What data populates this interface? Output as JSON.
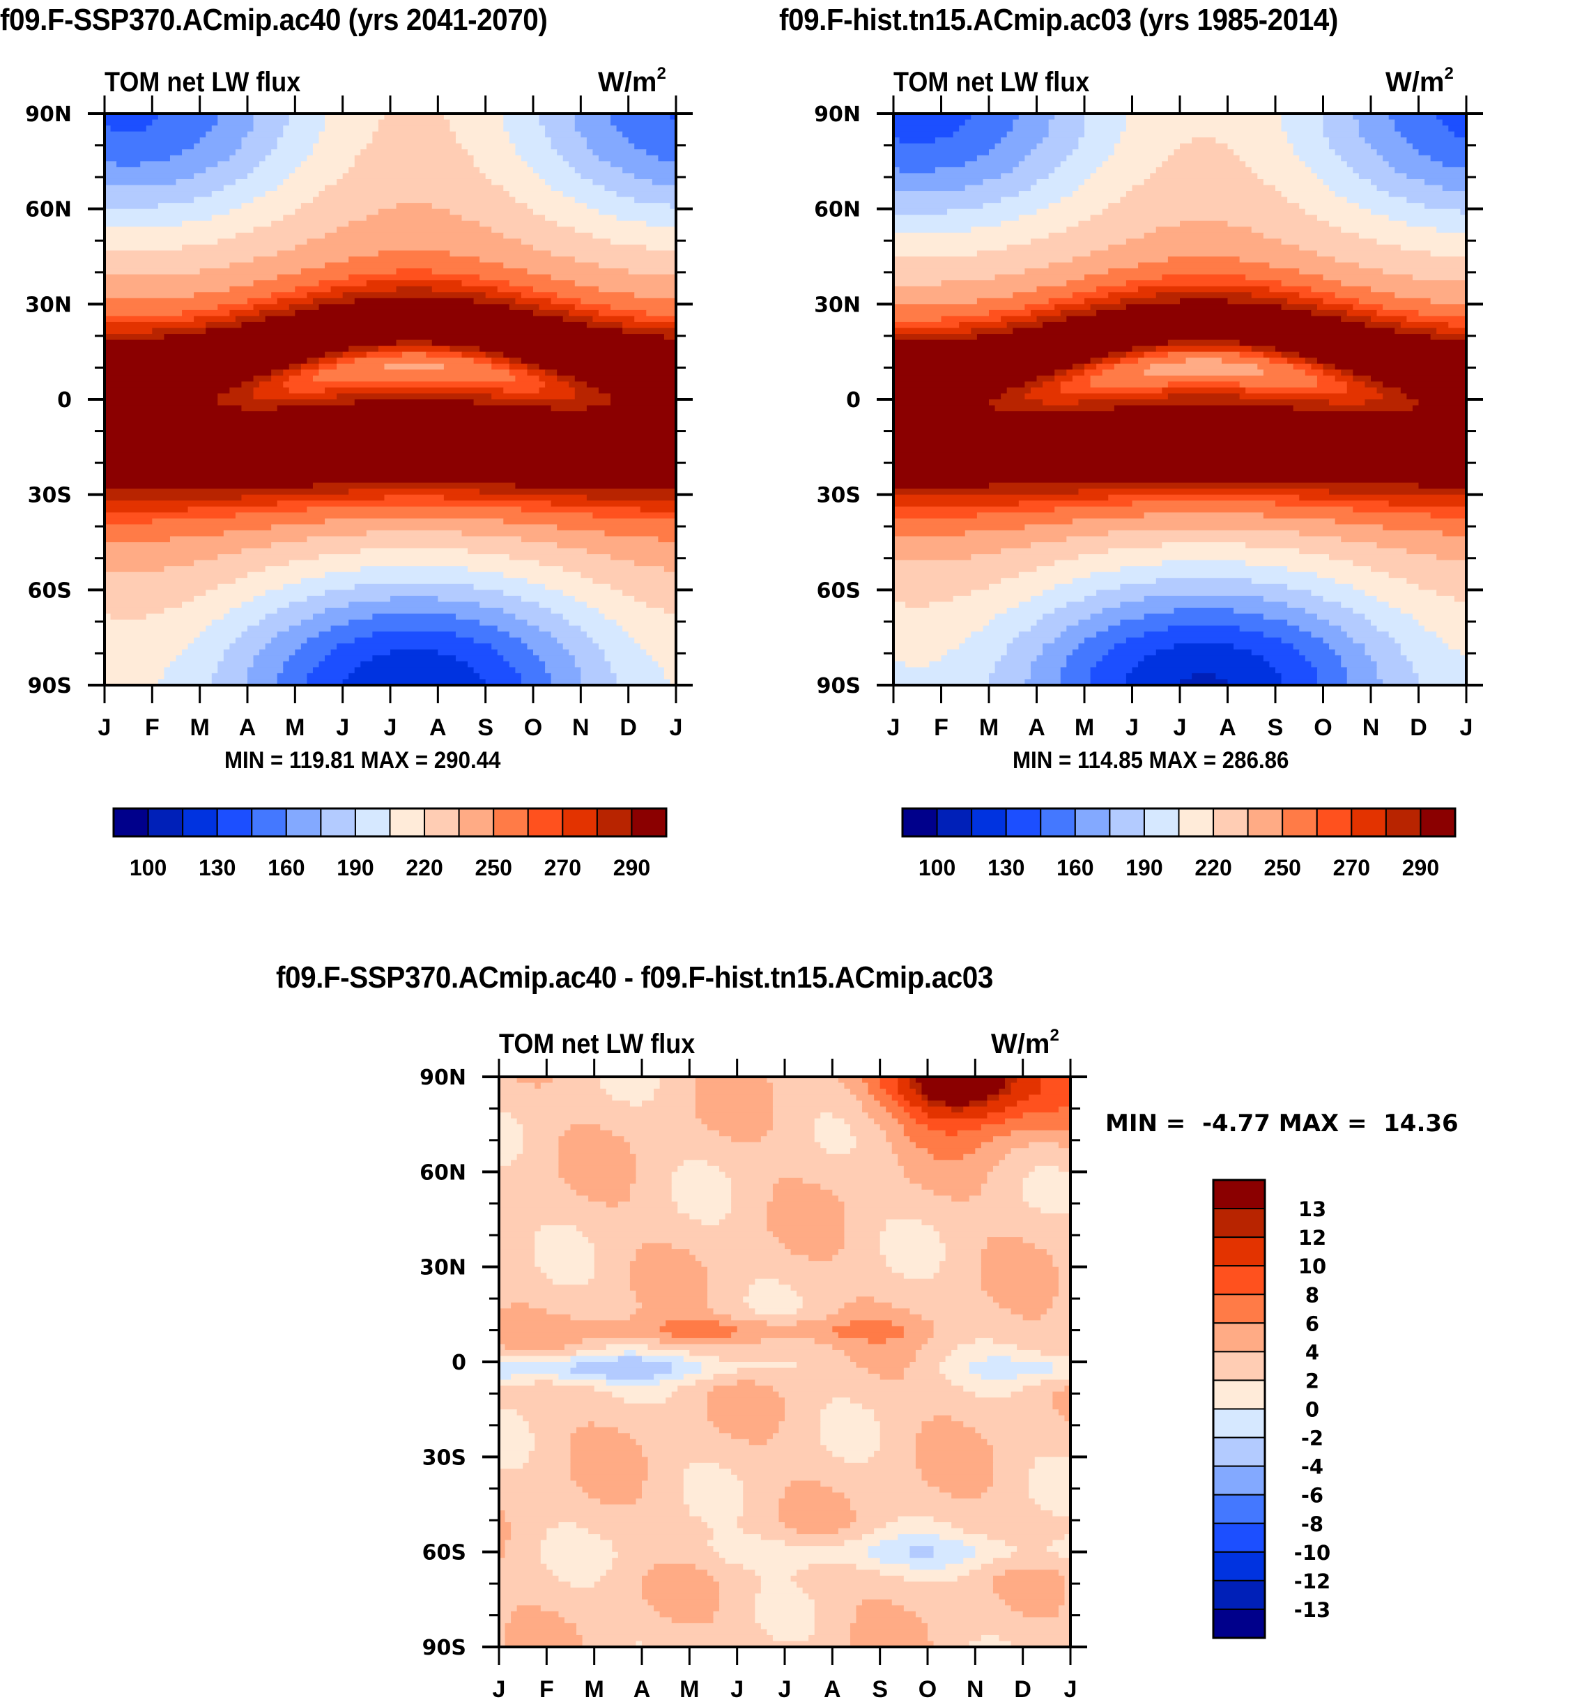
{
  "chart_data": [
    {
      "type": "heatmap",
      "id": "panel-ssp370",
      "title": "f09.F-SSP370.ACmip.ac40 (yrs 2041-2070)",
      "left_label": "TOM net LW flux",
      "units": "W/m",
      "units_sup": "2",
      "x_ticks": [
        "J",
        "F",
        "M",
        "A",
        "M",
        "J",
        "J",
        "A",
        "S",
        "O",
        "N",
        "D",
        "J"
      ],
      "y_ticks": [
        "90N",
        "60N",
        "30N",
        "0",
        "30S",
        "60S",
        "90S"
      ],
      "xlabel": "",
      "ylabel": "",
      "min_max_text": "MIN = 119.81 MAX = 290.44",
      "min": 119.81,
      "max": 290.44,
      "colorbar_orientation": "horizontal",
      "colorbar_labels": [
        "100",
        "130",
        "160",
        "190",
        "220",
        "250",
        "270",
        "290"
      ],
      "levels": [
        90,
        100,
        115,
        130,
        145,
        160,
        175,
        190,
        205,
        220,
        235,
        250,
        260,
        270,
        280,
        290
      ],
      "field_notes": "Zonal-mean annual cycle; maxima ~285 near 15N Jan-Mar and ~20S Jun-Aug; minima ~120-130 near 85S in Jul-Aug; ~165-180 near 90N in winter"
    },
    {
      "type": "heatmap",
      "id": "panel-hist",
      "title": "f09.F-hist.tn15.ACmip.ac03 (yrs 1985-2014)",
      "left_label": "TOM net LW flux",
      "units": "W/m",
      "units_sup": "2",
      "x_ticks": [
        "J",
        "F",
        "M",
        "A",
        "M",
        "J",
        "J",
        "A",
        "S",
        "O",
        "N",
        "D",
        "J"
      ],
      "y_ticks": [
        "90N",
        "60N",
        "30N",
        "0",
        "30S",
        "60S",
        "90S"
      ],
      "xlabel": "",
      "ylabel": "",
      "min_max_text": "MIN = 114.85 MAX = 286.86",
      "min": 114.85,
      "max": 286.86,
      "colorbar_orientation": "horizontal",
      "colorbar_labels": [
        "100",
        "130",
        "160",
        "190",
        "220",
        "250",
        "270",
        "290"
      ],
      "levels": [
        90,
        100,
        115,
        130,
        145,
        160,
        175,
        190,
        205,
        220,
        235,
        250,
        260,
        270,
        280,
        290
      ],
      "field_notes": "Similar pattern to future run, slightly colder poles (min ~115 near 85S Jul)"
    },
    {
      "type": "heatmap",
      "id": "panel-diff",
      "title": "f09.F-SSP370.ACmip.ac40 - f09.F-hist.tn15.ACmip.ac03",
      "left_label": "TOM net LW flux",
      "units": "W/m",
      "units_sup": "2",
      "x_ticks": [
        "J",
        "F",
        "M",
        "A",
        "M",
        "J",
        "J",
        "A",
        "S",
        "O",
        "N",
        "D",
        "J"
      ],
      "y_ticks": [
        "90N",
        "60N",
        "30N",
        "0",
        "30S",
        "60S",
        "90S"
      ],
      "xlabel": "",
      "ylabel": "",
      "min_max_text": "MIN =  -4.77 MAX =  14.36",
      "min": -4.77,
      "max": 14.36,
      "colorbar_orientation": "vertical",
      "colorbar_labels": [
        "13",
        "12",
        "10",
        "8",
        "6",
        "4",
        "2",
        "0",
        "-2",
        "-4",
        "-6",
        "-8",
        "-10",
        "-12",
        "-13"
      ],
      "levels": [
        -13,
        -12,
        -10,
        -8,
        -6,
        -4,
        -2,
        0,
        2,
        4,
        6,
        8,
        10,
        12,
        13
      ],
      "field_notes": "Mostly +2 to +6 everywhere; strong Arctic maximum (~14) near 90N in Oct-Nov; slight negative band (-2 to -6) just south of equator Jan-Mar"
    }
  ],
  "palette": [
    "#00008b",
    "#0020b8",
    "#0033e0",
    "#1c4fff",
    "#4478ff",
    "#83a9ff",
    "#b3cbff",
    "#d6e8ff",
    "#ffebd9",
    "#ffcdb4",
    "#ffab85",
    "#ff7b47",
    "#ff511e",
    "#e33300",
    "#b82400",
    "#8b0000"
  ]
}
